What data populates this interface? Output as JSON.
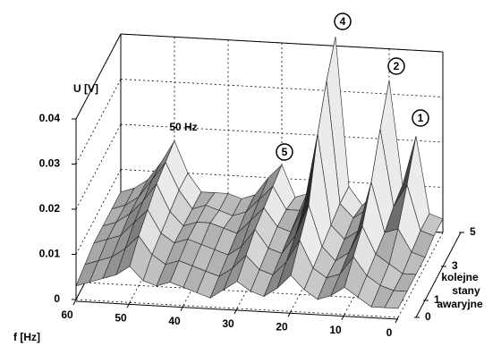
{
  "chart_data": {
    "type": "surface3d",
    "z_label": "U [V]",
    "x_label": "f [Hz]",
    "y_label": [
      "kolejne",
      "stany",
      "awaryjne"
    ],
    "annotations": [
      "50 Hz",
      "5",
      "4",
      "2",
      "1"
    ],
    "x": [
      60,
      57.5,
      55,
      52.5,
      50,
      47.5,
      45,
      42.5,
      40,
      37.5,
      35,
      32.5,
      30,
      27.5,
      25,
      22.5,
      20,
      17.5,
      15,
      12.5,
      10,
      7.5,
      5,
      2.5,
      0
    ],
    "series": [
      {
        "name": "0",
        "values": [
          0.003,
          0.004,
          0.005,
          0.006,
          0.008,
          0.005,
          0.004,
          0.005,
          0.004,
          0.003,
          0.002,
          0.004,
          0.006,
          0.004,
          0.003,
          0.005,
          0.008,
          0.005,
          0.003,
          0.004,
          0.006,
          0.004,
          0.002,
          0.002,
          0.002
        ]
      },
      {
        "name": "1",
        "values": [
          0.004,
          0.005,
          0.006,
          0.008,
          0.011,
          0.007,
          0.005,
          0.006,
          0.005,
          0.004,
          0.003,
          0.005,
          0.008,
          0.005,
          0.004,
          0.007,
          0.012,
          0.006,
          0.004,
          0.005,
          0.009,
          0.005,
          0.003,
          0.002,
          0.002
        ]
      },
      {
        "name": "2",
        "values": [
          0.005,
          0.006,
          0.007,
          0.01,
          0.013,
          0.008,
          0.006,
          0.007,
          0.006,
          0.005,
          0.004,
          0.006,
          0.01,
          0.006,
          0.005,
          0.009,
          0.016,
          0.007,
          0.004,
          0.006,
          0.012,
          0.006,
          0.004,
          0.002,
          0.002
        ]
      },
      {
        "name": "3",
        "values": [
          0.005,
          0.006,
          0.008,
          0.011,
          0.015,
          0.009,
          0.006,
          0.007,
          0.007,
          0.006,
          0.005,
          0.008,
          0.011,
          0.007,
          0.006,
          0.012,
          0.028,
          0.008,
          0.005,
          0.007,
          0.018,
          0.007,
          0.008,
          0.003,
          0.002
        ]
      },
      {
        "name": "4",
        "values": [
          0.005,
          0.006,
          0.008,
          0.012,
          0.016,
          0.01,
          0.006,
          0.007,
          0.006,
          0.005,
          0.006,
          0.009,
          0.012,
          0.007,
          0.007,
          0.014,
          0.036,
          0.009,
          0.006,
          0.008,
          0.026,
          0.009,
          0.014,
          0.004,
          0.003
        ]
      },
      {
        "name": "5",
        "values": [
          0.005,
          0.006,
          0.008,
          0.012,
          0.017,
          0.01,
          0.006,
          0.006,
          0.006,
          0.005,
          0.006,
          0.01,
          0.013,
          0.006,
          0.007,
          0.015,
          0.042,
          0.009,
          0.005,
          0.008,
          0.033,
          0.01,
          0.021,
          0.004,
          0.003
        ]
      }
    ],
    "xlim": [
      0,
      60
    ],
    "xticks": [
      60,
      50,
      40,
      30,
      20,
      10,
      0
    ],
    "ylim": [
      0,
      5
    ],
    "yticks": [
      0,
      1,
      3,
      5
    ],
    "zlim": [
      0,
      0.04
    ],
    "zticks": [
      0,
      0.01,
      0.02,
      0.03,
      0.04
    ],
    "grid": true
  }
}
